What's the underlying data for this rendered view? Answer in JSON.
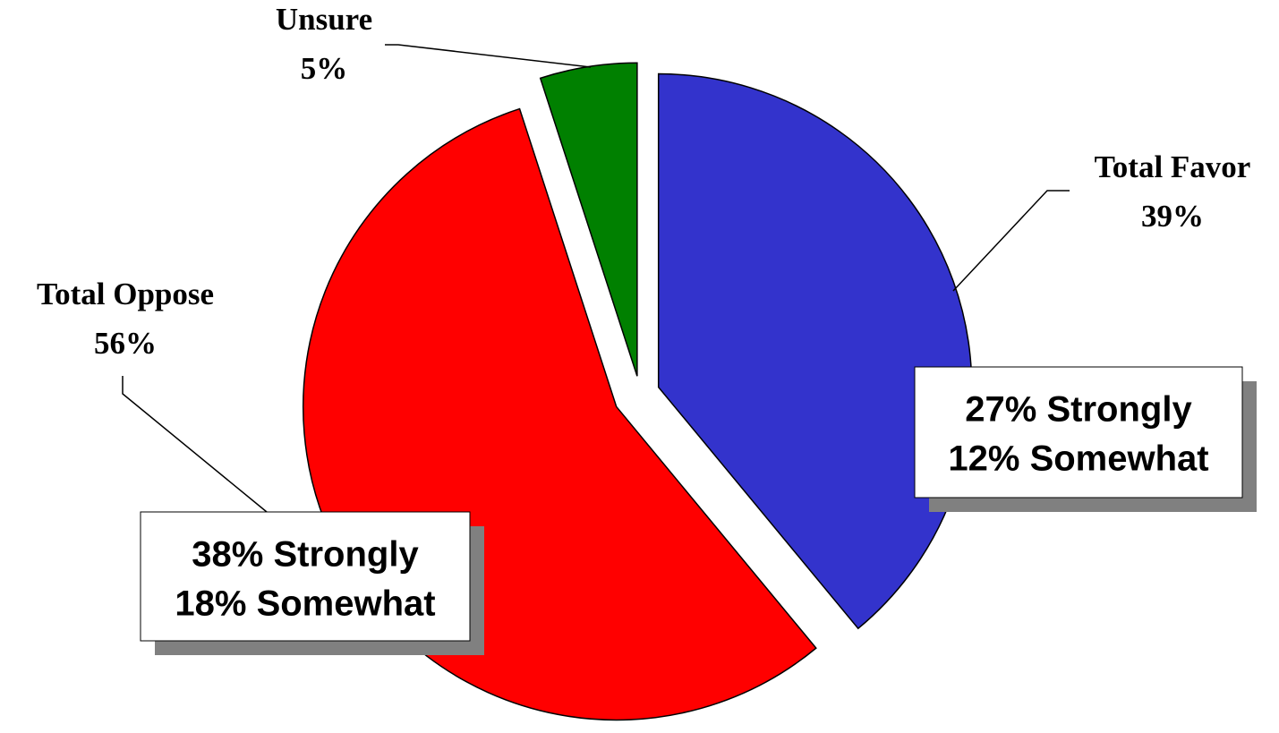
{
  "chart_data": {
    "type": "pie",
    "categories": [
      "Total Favor",
      "Total Oppose",
      "Unsure"
    ],
    "values": [
      39,
      56,
      5
    ],
    "value_labels": [
      "39%",
      "56%",
      "5%"
    ],
    "colors": [
      "#3333cc",
      "#ff0000",
      "#008000"
    ],
    "annotations": [
      "27% Strongly",
      "12% Somewhat",
      "38% Strongly",
      "18% Somewhat"
    ]
  }
}
